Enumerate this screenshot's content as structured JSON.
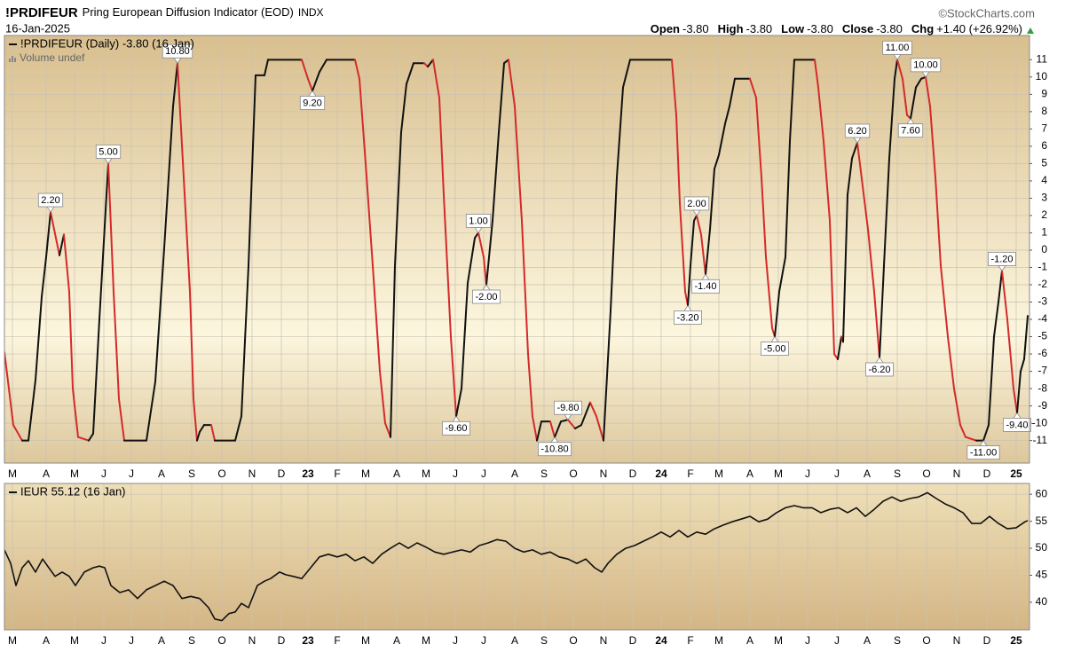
{
  "header": {
    "symbol": "!PRDIFEUR",
    "name": "Pring European Diffusion Indicator (EOD)",
    "exchange": "INDX",
    "date": "16-Jan-2025",
    "source": "©StockCharts.com",
    "quote": {
      "open_label": "Open",
      "open": "-3.80",
      "high_label": "High",
      "high": "-3.80",
      "low_label": "Low",
      "low": "-3.80",
      "close_label": "Close",
      "close": "-3.80",
      "chg_label": "Chg",
      "chg": "+1.40 (+26.92%)"
    }
  },
  "chart_data": [
    {
      "type": "line",
      "volume_note": "Volume undef",
      "grid": true,
      "xlim": [
        -9,
        1146
      ],
      "ylim": [
        -12.3,
        12.4
      ],
      "yticks": [
        11,
        10,
        9,
        8,
        7,
        6,
        5,
        4,
        3,
        2,
        1,
        0,
        -1,
        -2,
        -3,
        -4,
        -5,
        -6,
        -7,
        -8,
        -9,
        -10,
        -11
      ],
      "xticks": [
        {
          "value": 0,
          "label": "M"
        },
        {
          "value": 38,
          "label": "A"
        },
        {
          "value": 70,
          "label": "M"
        },
        {
          "value": 103,
          "label": "J"
        },
        {
          "value": 134,
          "label": "J"
        },
        {
          "value": 168,
          "label": "A"
        },
        {
          "value": 202,
          "label": "S"
        },
        {
          "value": 236,
          "label": "O"
        },
        {
          "value": 270,
          "label": "N"
        },
        {
          "value": 303,
          "label": "D"
        },
        {
          "value": 333,
          "label": "23"
        },
        {
          "value": 366,
          "label": "F"
        },
        {
          "value": 398,
          "label": "M"
        },
        {
          "value": 433,
          "label": "A"
        },
        {
          "value": 466,
          "label": "M"
        },
        {
          "value": 499,
          "label": "J"
        },
        {
          "value": 531,
          "label": "J"
        },
        {
          "value": 566,
          "label": "A"
        },
        {
          "value": 599,
          "label": "S"
        },
        {
          "value": 632,
          "label": "O"
        },
        {
          "value": 666,
          "label": "N"
        },
        {
          "value": 699,
          "label": "D"
        },
        {
          "value": 731,
          "label": "24"
        },
        {
          "value": 764,
          "label": "F"
        },
        {
          "value": 796,
          "label": "M"
        },
        {
          "value": 831,
          "label": "A"
        },
        {
          "value": 863,
          "label": "M"
        },
        {
          "value": 896,
          "label": "J"
        },
        {
          "value": 929,
          "label": "J"
        },
        {
          "value": 963,
          "label": "A"
        },
        {
          "value": 997,
          "label": "S"
        },
        {
          "value": 1030,
          "label": "O"
        },
        {
          "value": 1064,
          "label": "N"
        },
        {
          "value": 1098,
          "label": "D"
        },
        {
          "value": 1131,
          "label": "25"
        }
      ],
      "x": [
        -9,
        1,
        11,
        18,
        26,
        33,
        38,
        43,
        49,
        53,
        58,
        64,
        68,
        74,
        86,
        91,
        98,
        104,
        108,
        114,
        120,
        126,
        151,
        161,
        171,
        181,
        186,
        193,
        200,
        204,
        208,
        211,
        216,
        224,
        228,
        251,
        258,
        266,
        274,
        284,
        288,
        326,
        333,
        338,
        346,
        354,
        386,
        391,
        398,
        406,
        414,
        420,
        426,
        431,
        438,
        444,
        452,
        464,
        468,
        474,
        481,
        486,
        494,
        500,
        506,
        513,
        521,
        525,
        531,
        534,
        541,
        548,
        554,
        559,
        566,
        574,
        581,
        586,
        591,
        596,
        606,
        611,
        618,
        626,
        634,
        641,
        651,
        658,
        666,
        674,
        681,
        688,
        696,
        743,
        748,
        752,
        758,
        761,
        764,
        768,
        771,
        776,
        781,
        786,
        791,
        796,
        803,
        808,
        814,
        831,
        838,
        844,
        849,
        856,
        859,
        864,
        871,
        876,
        881,
        904,
        908,
        914,
        921,
        926,
        930,
        934,
        936,
        941,
        946,
        952,
        958,
        964,
        971,
        977,
        982,
        988,
        994,
        997,
        1003,
        1008,
        1012,
        1018,
        1024,
        1029,
        1034,
        1040,
        1046,
        1054,
        1061,
        1068,
        1074,
        1086,
        1094,
        1100,
        1106,
        1111,
        1115,
        1121,
        1128,
        1132,
        1136,
        1140,
        1144
      ],
      "series": [
        {
          "name": "!PRDIFEUR (Daily) -3.80 (16 Jan)",
          "color": "#111111",
          "down_color": "#d42a2a",
          "values": [
            -5.9,
            -10.1,
            -11,
            -11,
            -7.5,
            -2.7,
            -0.4,
            2.2,
            0.7,
            -0.3,
            0.9,
            -2.4,
            -8,
            -10.8,
            -11,
            -10.6,
            -4,
            1.4,
            5,
            -2.4,
            -8.6,
            -11,
            -11,
            -7.6,
            0.1,
            8.3,
            10.8,
            4.2,
            -2.4,
            -8.6,
            -11,
            -10.5,
            -10.1,
            -10.1,
            -11,
            -11,
            -9.6,
            -0.9,
            10.1,
            10.1,
            11,
            11,
            9.9,
            9.2,
            10.3,
            11,
            11,
            9.9,
            5,
            -0.9,
            -7,
            -10,
            -10.8,
            -0.9,
            6.8,
            9.6,
            10.8,
            10.8,
            10.6,
            11,
            8.8,
            3.2,
            -5,
            -9.6,
            -8,
            -1.9,
            0.7,
            1,
            -0.4,
            -2,
            1.7,
            6.8,
            10.8,
            11,
            8.3,
            1.7,
            -6,
            -9.6,
            -11,
            -9.9,
            -9.9,
            -10.8,
            -9.9,
            -9.8,
            -10.3,
            -10.1,
            -8.8,
            -9.6,
            -11,
            -3.5,
            4.2,
            9.4,
            11,
            11,
            7.8,
            2.7,
            -2.4,
            -3.2,
            -0.9,
            1.7,
            2,
            0.9,
            -1.4,
            1.2,
            4.7,
            5.5,
            7.3,
            8.3,
            9.9,
            9.9,
            8.8,
            4.2,
            -0.4,
            -4.5,
            -5,
            -2.4,
            -0.4,
            6.3,
            11,
            11,
            9.4,
            6.3,
            1.7,
            -6,
            -6.3,
            -5,
            -5.3,
            3.2,
            5.3,
            6.2,
            3.7,
            1.2,
            -2.4,
            -6.2,
            -0.9,
            5.3,
            9.9,
            11,
            9.9,
            7.8,
            7.6,
            9.4,
            9.9,
            10,
            8.3,
            4.2,
            -0.9,
            -5,
            -8,
            -10.1,
            -10.8,
            -11,
            -11,
            -10.1,
            -5,
            -3,
            -1.2,
            -4,
            -8,
            -9.4,
            -7,
            -6.3,
            -3.8
          ],
          "value_labels": [
            null,
            null,
            null,
            null,
            null,
            null,
            null,
            "2.20",
            null,
            null,
            null,
            null,
            null,
            null,
            null,
            null,
            null,
            null,
            "5.00",
            null,
            null,
            null,
            null,
            null,
            null,
            null,
            "10.80",
            null,
            null,
            null,
            null,
            null,
            null,
            null,
            null,
            null,
            null,
            null,
            null,
            null,
            null,
            null,
            null,
            "9.20",
            null,
            null,
            null,
            null,
            null,
            null,
            null,
            null,
            null,
            null,
            null,
            null,
            null,
            null,
            null,
            null,
            null,
            null,
            null,
            "-9.60",
            null,
            null,
            null,
            "1.00",
            null,
            "-2.00",
            null,
            null,
            null,
            null,
            null,
            null,
            null,
            null,
            null,
            null,
            null,
            "-10.80",
            null,
            "-9.80",
            null,
            null,
            null,
            null,
            null,
            null,
            null,
            null,
            null,
            null,
            null,
            null,
            null,
            "-3.20",
            null,
            null,
            "2.00",
            null,
            "-1.40",
            null,
            null,
            null,
            null,
            null,
            null,
            null,
            null,
            null,
            null,
            null,
            "-5.00",
            null,
            null,
            null,
            null,
            null,
            null,
            null,
            null,
            null,
            null,
            null,
            null,
            null,
            null,
            "6.20",
            null,
            null,
            null,
            "-6.20",
            null,
            null,
            null,
            "11.00",
            null,
            null,
            "7.60",
            null,
            null,
            "10.00",
            null,
            null,
            null,
            null,
            null,
            null,
            null,
            null,
            "-11.00",
            null,
            null,
            null,
            "-1.20",
            null,
            null,
            "-9.40",
            null,
            null,
            null
          ]
        }
      ]
    },
    {
      "type": "line",
      "grid": true,
      "xlim": [
        -9,
        1146
      ],
      "ylim": [
        34.9,
        62
      ],
      "yticks": [
        60,
        55,
        50,
        45,
        40
      ],
      "xticks": [
        {
          "value": 0,
          "label": "M"
        },
        {
          "value": 38,
          "label": "A"
        },
        {
          "value": 70,
          "label": "M"
        },
        {
          "value": 103,
          "label": "J"
        },
        {
          "value": 134,
          "label": "J"
        },
        {
          "value": 168,
          "label": "A"
        },
        {
          "value": 202,
          "label": "S"
        },
        {
          "value": 236,
          "label": "O"
        },
        {
          "value": 270,
          "label": "N"
        },
        {
          "value": 303,
          "label": "D"
        },
        {
          "value": 333,
          "label": "23"
        },
        {
          "value": 366,
          "label": "F"
        },
        {
          "value": 398,
          "label": "M"
        },
        {
          "value": 433,
          "label": "A"
        },
        {
          "value": 466,
          "label": "M"
        },
        {
          "value": 499,
          "label": "J"
        },
        {
          "value": 531,
          "label": "J"
        },
        {
          "value": 566,
          "label": "A"
        },
        {
          "value": 599,
          "label": "S"
        },
        {
          "value": 632,
          "label": "O"
        },
        {
          "value": 666,
          "label": "N"
        },
        {
          "value": 699,
          "label": "D"
        },
        {
          "value": 731,
          "label": "24"
        },
        {
          "value": 764,
          "label": "F"
        },
        {
          "value": 796,
          "label": "M"
        },
        {
          "value": 831,
          "label": "A"
        },
        {
          "value": 863,
          "label": "M"
        },
        {
          "value": 896,
          "label": "J"
        },
        {
          "value": 929,
          "label": "J"
        },
        {
          "value": 963,
          "label": "A"
        },
        {
          "value": 997,
          "label": "S"
        },
        {
          "value": 1030,
          "label": "O"
        },
        {
          "value": 1064,
          "label": "N"
        },
        {
          "value": 1098,
          "label": "D"
        },
        {
          "value": 1131,
          "label": "25"
        }
      ],
      "x": [
        -9,
        -2,
        4,
        11,
        18,
        26,
        34,
        41,
        48,
        56,
        64,
        71,
        81,
        91,
        98,
        104,
        111,
        121,
        131,
        141,
        151,
        161,
        171,
        181,
        191,
        201,
        211,
        221,
        228,
        236,
        244,
        251,
        258,
        266,
        276,
        284,
        291,
        301,
        308,
        316,
        326,
        336,
        346,
        356,
        366,
        376,
        386,
        396,
        406,
        416,
        426,
        436,
        446,
        456,
        466,
        476,
        486,
        496,
        506,
        516,
        526,
        536,
        546,
        556,
        566,
        576,
        586,
        596,
        606,
        616,
        626,
        636,
        646,
        656,
        664,
        671,
        681,
        691,
        701,
        711,
        721,
        731,
        741,
        751,
        761,
        771,
        781,
        791,
        801,
        811,
        821,
        831,
        841,
        851,
        861,
        871,
        881,
        891,
        901,
        911,
        921,
        931,
        941,
        951,
        961,
        971,
        981,
        991,
        1001,
        1011,
        1021,
        1031,
        1041,
        1051,
        1061,
        1071,
        1081,
        1091,
        1101,
        1111,
        1121,
        1131,
        1141,
        1144
      ],
      "series": [
        {
          "name": "IEUR 55.12 (16 Jan)",
          "color": "#111111",
          "values": [
            49.7,
            47.2,
            43.1,
            46.4,
            47.7,
            45.6,
            48,
            46.4,
            44.8,
            45.6,
            44.8,
            43.1,
            45.6,
            46.4,
            46.7,
            46.4,
            43.1,
            41.8,
            42.3,
            40.7,
            42.3,
            43.1,
            43.9,
            43.1,
            40.7,
            41.1,
            40.7,
            39,
            36.9,
            36.6,
            37.9,
            38.2,
            39.8,
            39,
            43.1,
            43.9,
            44.4,
            45.6,
            45.1,
            44.8,
            44.4,
            46.4,
            48.4,
            48.9,
            48.4,
            48.9,
            47.7,
            48.4,
            47.2,
            48.9,
            50,
            51,
            50,
            51,
            50.2,
            49.3,
            48.9,
            49.3,
            49.7,
            49.3,
            50.5,
            51,
            51.6,
            51.3,
            50,
            49.3,
            49.7,
            48.9,
            49.3,
            48.4,
            48,
            47.2,
            48,
            46.4,
            45.6,
            47.2,
            48.9,
            50,
            50.5,
            51.3,
            52.1,
            53,
            52.1,
            53.3,
            52.1,
            53,
            52.6,
            53.6,
            54.3,
            54.9,
            55.4,
            55.9,
            54.9,
            55.4,
            56.6,
            57.5,
            57.9,
            57.5,
            57.5,
            56.6,
            57.2,
            57.5,
            56.6,
            57.5,
            55.9,
            57.2,
            58.7,
            59.5,
            58.7,
            59.2,
            59.5,
            60.3,
            59.2,
            58.2,
            57.5,
            56.6,
            54.6,
            54.6,
            55.9,
            54.6,
            53.6,
            53.8,
            54.9,
            55.12
          ]
        }
      ]
    }
  ]
}
